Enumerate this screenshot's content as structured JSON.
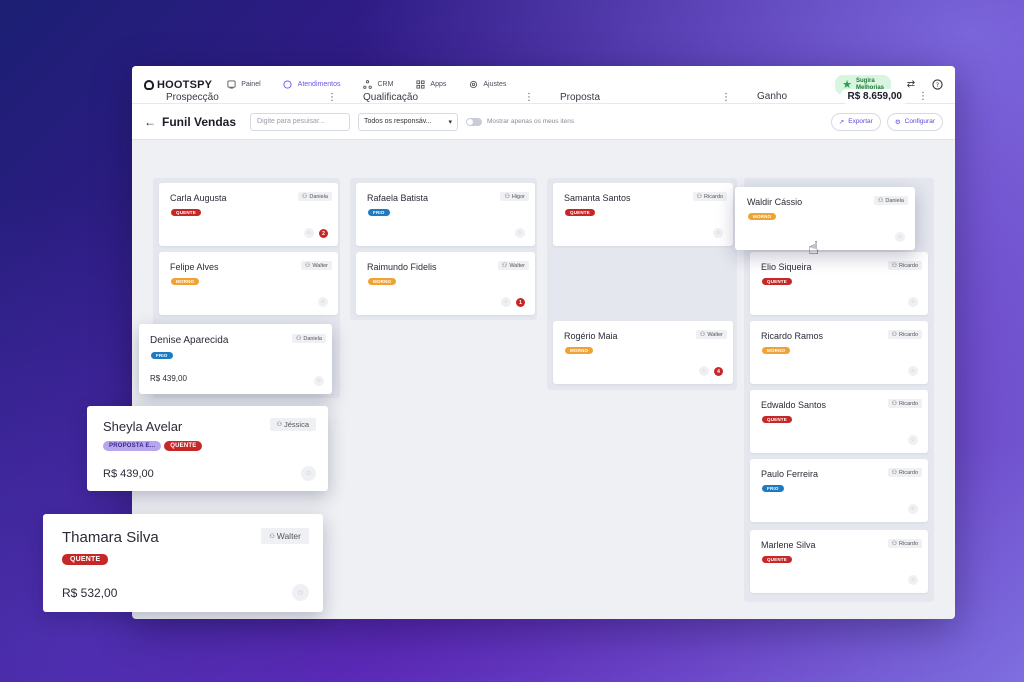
{
  "nav": {
    "logo": "HOOTSPY",
    "items": [
      {
        "label": "Painel",
        "icon": "dashboard-icon"
      },
      {
        "label": "Atendimentos",
        "icon": "chat-icon",
        "active": true
      },
      {
        "label": "CRM",
        "icon": "crm-icon"
      },
      {
        "label": "Apps",
        "icon": "apps-icon"
      },
      {
        "label": "Ajustes",
        "icon": "gear-icon"
      }
    ],
    "suggest_line1": "Sugira",
    "suggest_line2": "Melhorias"
  },
  "toolbar": {
    "title": "Funil Vendas",
    "search_placeholder": "Digite para pesuisar...",
    "select_value": "Todos os responsáv...",
    "toggle_label": "Mostrar apenas os meus itens",
    "export_label": "Exportar",
    "config_label": "Configurar"
  },
  "columns": [
    {
      "title": "Prospecção"
    },
    {
      "title": "Qualificação"
    },
    {
      "title": "Proposta"
    },
    {
      "title": "Ganho",
      "total": "R$ 8.659,00"
    }
  ],
  "cards": {
    "carla": {
      "name": "Carla Augusta",
      "owner": "Daniela",
      "tag": "QUENTE",
      "badge": "2"
    },
    "felipe": {
      "name": "Felipe Alves",
      "owner": "Walter",
      "tag": "MORNO"
    },
    "denise": {
      "name": "Denise Aparecida",
      "owner": "Daniela",
      "tag": "FRIO",
      "price": "R$ 439,00"
    },
    "rafaela": {
      "name": "Rafaela Batista",
      "owner": "Higor",
      "tag": "FRIO"
    },
    "raimundo": {
      "name": "Raimundo Fidelis",
      "owner": "Walter",
      "tag": "MORNO",
      "badge": "1"
    },
    "samanta": {
      "name": "Samanta Santos",
      "owner": "Ricardo",
      "tag": "QUENTE"
    },
    "rogerio": {
      "name": "Rogério Maia",
      "owner": "Walter",
      "tag": "MORNO",
      "badge": "4"
    },
    "waldir": {
      "name": "Waldir Cássio",
      "owner": "Daniela",
      "tag": "MORNO"
    },
    "elio": {
      "name": "Elio Siqueira",
      "owner": "Ricardo",
      "tag": "QUENTE"
    },
    "ricardo": {
      "name": "Ricardo Ramos",
      "owner": "Ricardo",
      "tag": "MORNO"
    },
    "edwaldo": {
      "name": "Edwaldo Santos",
      "owner": "Ricardo",
      "tag": "QUENTE"
    },
    "paulo": {
      "name": "Paulo Ferreira",
      "owner": "Ricardo",
      "tag": "FRIO"
    },
    "marlene": {
      "name": "Marlene Silva",
      "owner": "Ricardo",
      "tag": "QUENTE"
    },
    "sheyla": {
      "name": "Sheyla Avelar",
      "owner": "Jéssica",
      "tag1": "PROPOSTA E...",
      "tag2": "QUENTE",
      "price": "R$ 439,00"
    },
    "thamara": {
      "name": "Thamara Silva",
      "owner": "Walter",
      "tag": "QUENTE",
      "price": "R$ 532,00"
    }
  }
}
